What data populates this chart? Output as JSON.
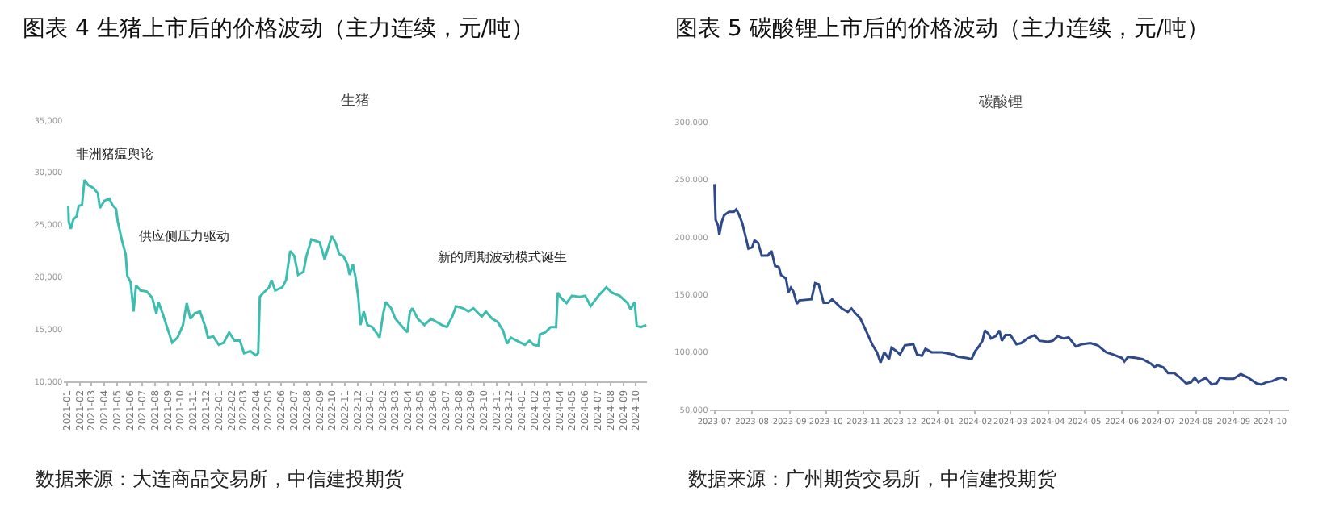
{
  "chart_data": [
    {
      "type": "line",
      "title": "图表 4 生猪上市后的价格波动（主力连续，元/吨）",
      "subtitle": "生猪",
      "annotations": [
        "非洲猪瘟舆论",
        "供应侧压力驱动",
        "新的周期波动模式诞生",
        "数据来源：大连商品交易所，中信建投期货"
      ],
      "x": [
        "2021-01-04",
        "2021-01-05",
        "2021-01-10",
        "2021-01-16",
        "2021-01-24",
        "2021-01-29",
        "2021-02-06",
        "2021-02-12",
        "2021-02-21",
        "2021-03-06",
        "2021-03-16",
        "2021-03-21",
        "2021-04-01",
        "2021-04-13",
        "2021-04-20",
        "2021-04-29",
        "2021-05-03",
        "2021-05-13",
        "2021-05-22",
        "2021-05-26",
        "2021-06-03",
        "2021-06-10",
        "2021-06-16",
        "2021-06-27",
        "2021-07-12",
        "2021-07-25",
        "2021-08-04",
        "2021-08-09",
        "2021-08-19",
        "2021-09-01",
        "2021-09-11",
        "2021-09-24",
        "2021-10-07",
        "2021-10-16",
        "2021-10-25",
        "2021-11-04",
        "2021-11-17",
        "2021-11-30",
        "2021-12-06",
        "2021-12-19",
        "2022-01-01",
        "2022-01-13",
        "2022-01-26",
        "2022-02-08",
        "2022-02-21",
        "2022-03-03",
        "2022-03-18",
        "2022-03-31",
        "2022-04-06",
        "2022-04-10",
        "2022-04-19",
        "2022-05-02",
        "2022-05-08",
        "2022-05-17",
        "2022-06-03",
        "2022-06-12",
        "2022-06-22",
        "2022-07-02",
        "2022-07-11",
        "2022-07-24",
        "2022-07-31",
        "2022-08-12",
        "2022-09-01",
        "2022-09-13",
        "2022-09-30",
        "2022-10-09",
        "2022-10-18",
        "2022-10-28",
        "2022-11-07",
        "2022-11-12",
        "2022-11-20",
        "2022-11-26",
        "2022-12-03",
        "2022-12-08",
        "2022-12-16",
        "2022-12-25",
        "2023-01-06",
        "2023-01-23",
        "2023-02-01",
        "2023-02-07",
        "2023-02-20",
        "2023-03-02",
        "2023-03-15",
        "2023-03-31",
        "2023-04-06",
        "2023-04-12",
        "2023-04-25",
        "2023-05-11",
        "2023-05-27",
        "2023-06-09",
        "2023-06-22",
        "2023-07-04",
        "2023-07-17",
        "2023-07-26",
        "2023-08-12",
        "2023-08-25",
        "2023-09-06",
        "2023-09-26",
        "2023-10-06",
        "2023-10-21",
        "2023-11-03",
        "2023-11-16",
        "2023-11-26",
        "2023-12-05",
        "2023-12-24",
        "2024-01-08",
        "2024-01-19",
        "2024-01-29",
        "2024-02-09",
        "2024-02-13",
        "2024-02-26",
        "2024-03-10",
        "2024-03-23",
        "2024-03-27",
        "2024-04-04",
        "2024-04-17",
        "2024-04-30",
        "2024-05-19",
        "2024-06-01",
        "2024-06-14",
        "2024-07-03",
        "2024-07-22",
        "2024-08-04",
        "2024-08-23",
        "2024-09-11",
        "2024-09-18",
        "2024-09-28",
        "2024-10-03",
        "2024-10-13",
        "2024-10-26"
      ],
      "series": [
        {
          "color": "#3dbdb0",
          "values": [
            26800,
            25300,
            24600,
            25500,
            25800,
            26800,
            26900,
            29300,
            28800,
            28500,
            28000,
            26600,
            27300,
            27500,
            26900,
            26500,
            25300,
            23500,
            22200,
            20100,
            19500,
            16700,
            19200,
            18700,
            18600,
            18000,
            16500,
            17600,
            16500,
            14900,
            13700,
            14200,
            15400,
            17500,
            16000,
            16500,
            16700,
            15200,
            14200,
            14300,
            13500,
            13700,
            14700,
            13900,
            13900,
            12700,
            12900,
            12500,
            12700,
            18100,
            18500,
            19000,
            19700,
            18700,
            19000,
            19700,
            22500,
            22000,
            20200,
            20500,
            22000,
            23600,
            23300,
            21700,
            23900,
            23300,
            22200,
            22000,
            21200,
            20200,
            21200,
            20000,
            18000,
            15400,
            16700,
            15400,
            15200,
            14200,
            16500,
            17600,
            17000,
            16000,
            15400,
            14700,
            16600,
            17000,
            16000,
            15400,
            16000,
            15700,
            15400,
            15200,
            16200,
            17200,
            17000,
            16700,
            17000,
            16200,
            16700,
            16000,
            15700,
            14900,
            13600,
            14200,
            13800,
            13500,
            13900,
            13500,
            13400,
            14500,
            14700,
            15200,
            15200,
            18500,
            18000,
            17500,
            18200,
            18100,
            18200,
            17200,
            18200,
            19000,
            18500,
            18200,
            17500,
            16900,
            17600,
            15300,
            15200,
            15400
          ]
        }
      ],
      "xlim": [
        "2020-12-25",
        "2024-10-28"
      ],
      "xticks": [
        "2021-01",
        "2021-02",
        "2021-03",
        "2021-04",
        "2021-05",
        "2021-06",
        "2021-07",
        "2021-08",
        "2021-09",
        "2021-10",
        "2021-11",
        "2021-12",
        "2022-01",
        "2022-02",
        "2022-03",
        "2022-04",
        "2022-05",
        "2022-06",
        "2022-07",
        "2022-08",
        "2022-09",
        "2022-10",
        "2022-11",
        "2022-12",
        "2023-01",
        "2023-02",
        "2023-03",
        "2023-04",
        "2023-05",
        "2023-06",
        "2023-07",
        "2023-08",
        "2023-09",
        "2023-10",
        "2023-11",
        "2023-12",
        "2024-01",
        "2024-02",
        "2024-03",
        "2024-04",
        "2024-05",
        "2024-06",
        "2024-07",
        "2024-08",
        "2024-09",
        "2024-10"
      ],
      "ylim": [
        10000,
        35000
      ],
      "yticks": [
        {
          "value": 10000,
          "label": "10,000"
        },
        {
          "value": 15000,
          "label": "15,000"
        },
        {
          "value": 20000,
          "label": "20,000"
        },
        {
          "value": 25000,
          "label": "25,000"
        },
        {
          "value": 30000,
          "label": "30,000"
        },
        {
          "value": 35000,
          "label": "35,000"
        }
      ],
      "marker": "none",
      "line_style": "solid"
    },
    {
      "type": "line",
      "title": "图表 5 碳酸锂上市后的价格波动（主力连续，元/吨）",
      "subtitle": "碳酸锂",
      "annotations": [
        "数据来源：广州期货交易所，中信建投期货"
      ],
      "x": [
        "2023-07-01",
        "2023-07-02",
        "2023-07-04",
        "2023-07-05",
        "2023-07-07",
        "2023-07-09",
        "2023-07-13",
        "2023-07-17",
        "2023-07-19",
        "2023-07-21",
        "2023-07-24",
        "2023-07-27",
        "2023-07-29",
        "2023-08-01",
        "2023-08-03",
        "2023-08-06",
        "2023-08-09",
        "2023-08-14",
        "2023-08-17",
        "2023-08-20",
        "2023-08-23",
        "2023-08-25",
        "2023-08-29",
        "2023-08-31",
        "2023-09-02",
        "2023-09-04",
        "2023-09-07",
        "2023-09-09",
        "2023-09-19",
        "2023-09-22",
        "2023-09-25",
        "2023-09-29",
        "2023-10-03",
        "2023-10-06",
        "2023-10-10",
        "2023-10-14",
        "2023-10-19",
        "2023-10-22",
        "2023-10-25",
        "2023-10-29",
        "2023-11-02",
        "2023-11-05",
        "2023-11-08",
        "2023-11-12",
        "2023-11-15",
        "2023-11-18",
        "2023-11-22",
        "2023-11-24",
        "2023-11-28",
        "2023-12-01",
        "2023-12-05",
        "2023-12-12",
        "2023-12-15",
        "2023-12-19",
        "2023-12-22",
        "2023-12-27",
        "2024-01-01",
        "2024-01-05",
        "2024-01-09",
        "2024-01-14",
        "2024-01-18",
        "2024-01-25",
        "2024-01-29",
        "2024-02-01",
        "2024-02-04",
        "2024-02-07",
        "2024-02-09",
        "2024-02-12",
        "2024-02-14",
        "2024-02-18",
        "2024-02-21",
        "2024-02-23",
        "2024-02-26",
        "2024-03-01",
        "2024-03-06",
        "2024-03-10",
        "2024-03-15",
        "2024-03-21",
        "2024-03-25",
        "2024-04-01",
        "2024-04-05",
        "2024-04-09",
        "2024-04-14",
        "2024-04-18",
        "2024-04-24",
        "2024-04-29",
        "2024-05-06",
        "2024-05-12",
        "2024-05-19",
        "2024-05-25",
        "2024-06-01",
        "2024-06-03",
        "2024-06-06",
        "2024-06-13",
        "2024-06-18",
        "2024-06-25",
        "2024-06-28",
        "2024-06-30",
        "2024-07-05",
        "2024-07-09",
        "2024-07-14",
        "2024-07-19",
        "2024-07-24",
        "2024-07-28",
        "2024-07-31",
        "2024-08-03",
        "2024-08-09",
        "2024-08-14",
        "2024-08-18",
        "2024-08-21",
        "2024-08-26",
        "2024-09-01",
        "2024-09-07",
        "2024-09-13",
        "2024-09-20",
        "2024-09-24",
        "2024-09-28",
        "2024-10-03",
        "2024-10-07",
        "2024-10-11",
        "2024-10-15"
      ],
      "series": [
        {
          "color": "#2e4a8a",
          "values": [
            246000,
            215000,
            210000,
            202000,
            213000,
            219000,
            222000,
            222000,
            224000,
            220000,
            212000,
            199000,
            190000,
            191000,
            197000,
            195000,
            184000,
            184000,
            188000,
            175000,
            174000,
            167000,
            164000,
            152000,
            156000,
            153000,
            142000,
            145000,
            146000,
            160000,
            159000,
            143000,
            143000,
            146000,
            142000,
            138000,
            135000,
            138000,
            134000,
            130000,
            121000,
            114000,
            107000,
            100000,
            91000,
            100000,
            94000,
            104000,
            101000,
            98000,
            106000,
            107000,
            98000,
            97000,
            103000,
            100000,
            100000,
            100000,
            99000,
            98000,
            96000,
            95000,
            94000,
            101000,
            105000,
            110000,
            119000,
            116000,
            112000,
            114000,
            119000,
            110000,
            115000,
            115000,
            107000,
            108000,
            112000,
            115000,
            110000,
            109000,
            110000,
            114000,
            112000,
            113000,
            105000,
            107000,
            108000,
            106000,
            100000,
            98000,
            95000,
            92000,
            96000,
            95000,
            94000,
            90000,
            87000,
            89000,
            87000,
            82000,
            82000,
            78000,
            73000,
            74000,
            78000,
            74000,
            78000,
            72000,
            73000,
            78000,
            77000,
            77000,
            81000,
            78000,
            73000,
            72000,
            74000,
            75000,
            77000,
            78000,
            76000
          ]
        }
      ],
      "xlim": [
        "2023-06-27",
        "2024-10-17"
      ],
      "xticks": [
        "2023-07",
        "2023-08",
        "2023-09",
        "2023-10",
        "2023-11",
        "2023-12",
        "2024-01",
        "2024-02",
        "2024-03",
        "2024-04",
        "2024-05",
        "2024-06",
        "2024-07",
        "2024-08",
        "2024-09",
        "2024-10"
      ],
      "ylim": [
        50000,
        300000
      ],
      "yticks": [
        {
          "value": 50000,
          "label": "50,000"
        },
        {
          "value": 100000,
          "label": "100,000"
        },
        {
          "value": 150000,
          "label": "150,000"
        },
        {
          "value": 200000,
          "label": "200,000"
        },
        {
          "value": 250000,
          "label": "250,000"
        },
        {
          "value": 300000,
          "label": "300,000"
        }
      ],
      "marker": "none",
      "line_style": "solid"
    }
  ]
}
